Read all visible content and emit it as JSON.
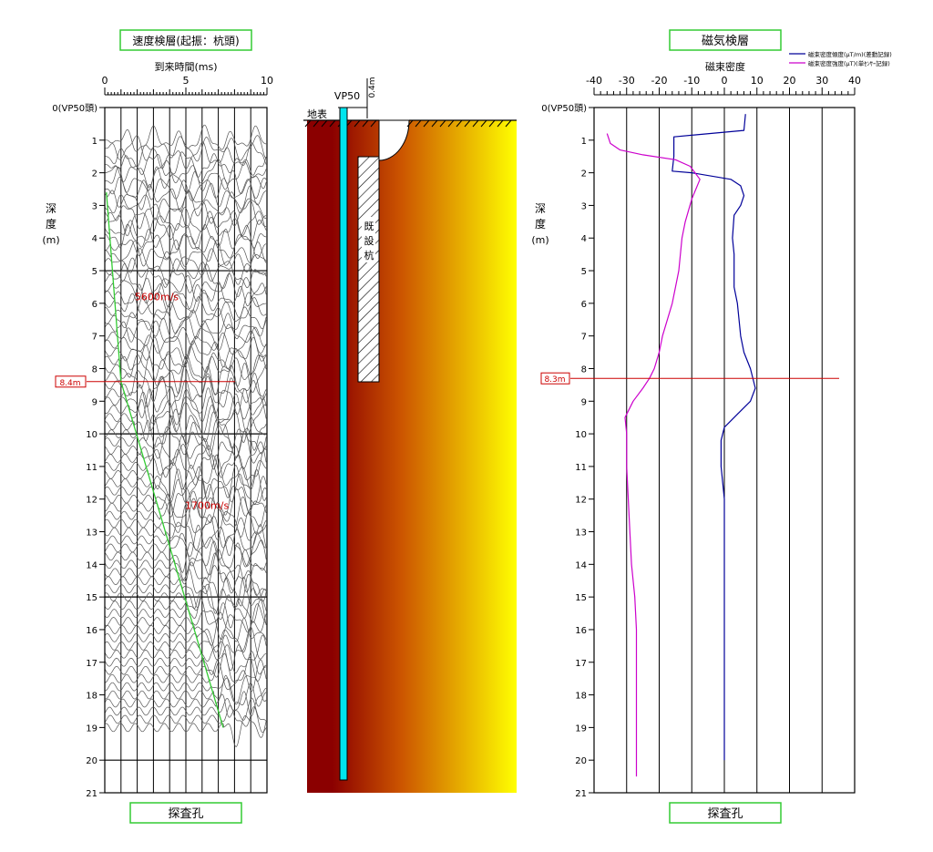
{
  "left_panel": {
    "title": "速度検層(起振：杭頭)",
    "xlabel": "到来時間(ms)",
    "footer": "探査孔",
    "depth_label_chars": [
      "深",
      "度",
      "(m)"
    ]
  },
  "center_panel": {
    "borehole_label": "VP50",
    "ground_label": "地表",
    "offset_label": "0.4m",
    "pile_label_chars": [
      "既",
      "設",
      "杭"
    ]
  },
  "right_panel": {
    "title": "磁気検層",
    "xlabel": "磁束密度",
    "footer": "探査孔",
    "depth_label_chars": [
      "深",
      "度",
      "(m)"
    ]
  },
  "colors": {
    "title_border": "#33cc33",
    "velocity_line": "#33cc33",
    "marker": "#cc0000",
    "gradient_series": "#000099",
    "intensity_series": "#cc00cc",
    "borehole": "#00e5ee",
    "soil_dark": "#8b0000",
    "soil_light": "#ffff00"
  },
  "chart_data": [
    {
      "type": "line",
      "title": "速度検層(起振：杭頭)",
      "xlabel": "到来時間(ms)",
      "ylabel": "深度(m)",
      "xlim": [
        0,
        10
      ],
      "ylim": [
        0,
        21
      ],
      "x_ticks": [
        "0",
        "5",
        "10"
      ],
      "y_ticks": [
        "0(VP50頭)",
        "1",
        "2",
        "3",
        "4",
        "5",
        "6",
        "7",
        "8",
        "9",
        "10",
        "11",
        "12",
        "13",
        "14",
        "15",
        "16",
        "17",
        "18",
        "19",
        "20",
        "21"
      ],
      "series": [
        {
          "x": [
            0.1,
            1.0,
            7.3
          ],
          "y": [
            2.6,
            8.4,
            19.0
          ]
        }
      ],
      "annotations": [
        {
          "text": "5600m/s",
          "x": 3.2,
          "y": 5.9
        },
        {
          "text": "1700m/s",
          "x": 6.3,
          "y": 12.3
        }
      ],
      "marker": {
        "depth": 8.4,
        "label": "8.4m"
      },
      "trace_depth_range": [
        1.0,
        19.0
      ],
      "trace_spacing": 0.25
    },
    {
      "type": "line",
      "title": "磁気検層",
      "xlabel": "磁束密度",
      "ylabel": "深度(m)",
      "xlim": [
        -40,
        40
      ],
      "ylim": [
        0,
        21
      ],
      "x_ticks": [
        "-40",
        "-30",
        "-20",
        "-10",
        "0",
        "10",
        "20",
        "30",
        "40"
      ],
      "y_ticks": [
        "0(VP50頭)",
        "1",
        "2",
        "3",
        "4",
        "5",
        "6",
        "7",
        "8",
        "9",
        "10",
        "11",
        "12",
        "13",
        "14",
        "15",
        "16",
        "17",
        "18",
        "19",
        "20",
        "21"
      ],
      "legend_position": "top-right",
      "series": [
        {
          "name": "磁束密度傾度(μT/m)(差動記録)",
          "x": [
            6.5,
            6.0,
            -15.5,
            -15.5,
            -16.0,
            -10.0,
            2.0,
            5.0,
            6.0,
            5.0,
            3.0,
            2.5,
            3.0,
            3.0,
            3.0,
            4.0,
            5.0,
            6.0,
            8.0,
            9.5,
            8.0,
            4.0,
            0.0,
            -1.0,
            -1.0,
            -0.5,
            0.0,
            0.0,
            0.0,
            0.0,
            0.0,
            0.0,
            0.0,
            0.0,
            0.0
          ],
          "y": [
            0.2,
            0.7,
            0.9,
            1.5,
            1.95,
            2.0,
            2.2,
            2.4,
            2.7,
            3.0,
            3.3,
            4.0,
            4.5,
            5.0,
            5.5,
            6.0,
            7.0,
            7.5,
            8.0,
            8.6,
            9.0,
            9.4,
            9.8,
            10.2,
            11.0,
            11.5,
            12.0,
            13.0,
            14.0,
            15.0,
            16.0,
            17.0,
            18.0,
            19.0,
            20.0
          ]
        },
        {
          "name": "磁束密度強度(μT)(単ｾﾝｻｰ記録)",
          "x": [
            -36.0,
            -35.0,
            -32.0,
            -25.0,
            -15.0,
            -10.5,
            -7.5,
            -10.0,
            -12.0,
            -13.0,
            -14.0,
            -15.0,
            -16.0,
            -19.0,
            -20.0,
            -21.5,
            -23.0,
            -25.0,
            -28.0,
            -30.5,
            -30.0,
            -30.0,
            -29.0,
            -28.5,
            -27.5,
            -27.0,
            -27.0,
            -27.0,
            -27.0
          ],
          "y": [
            0.8,
            1.1,
            1.3,
            1.45,
            1.6,
            1.8,
            2.2,
            2.8,
            3.5,
            4.0,
            5.0,
            5.5,
            6.0,
            7.0,
            7.5,
            8.0,
            8.3,
            8.6,
            9.0,
            9.5,
            10.0,
            11.0,
            13.0,
            14.0,
            15.0,
            16.0,
            17.0,
            18.0,
            20.5
          ]
        }
      ],
      "marker": {
        "depth": 8.3,
        "label": "8.3m"
      }
    }
  ]
}
